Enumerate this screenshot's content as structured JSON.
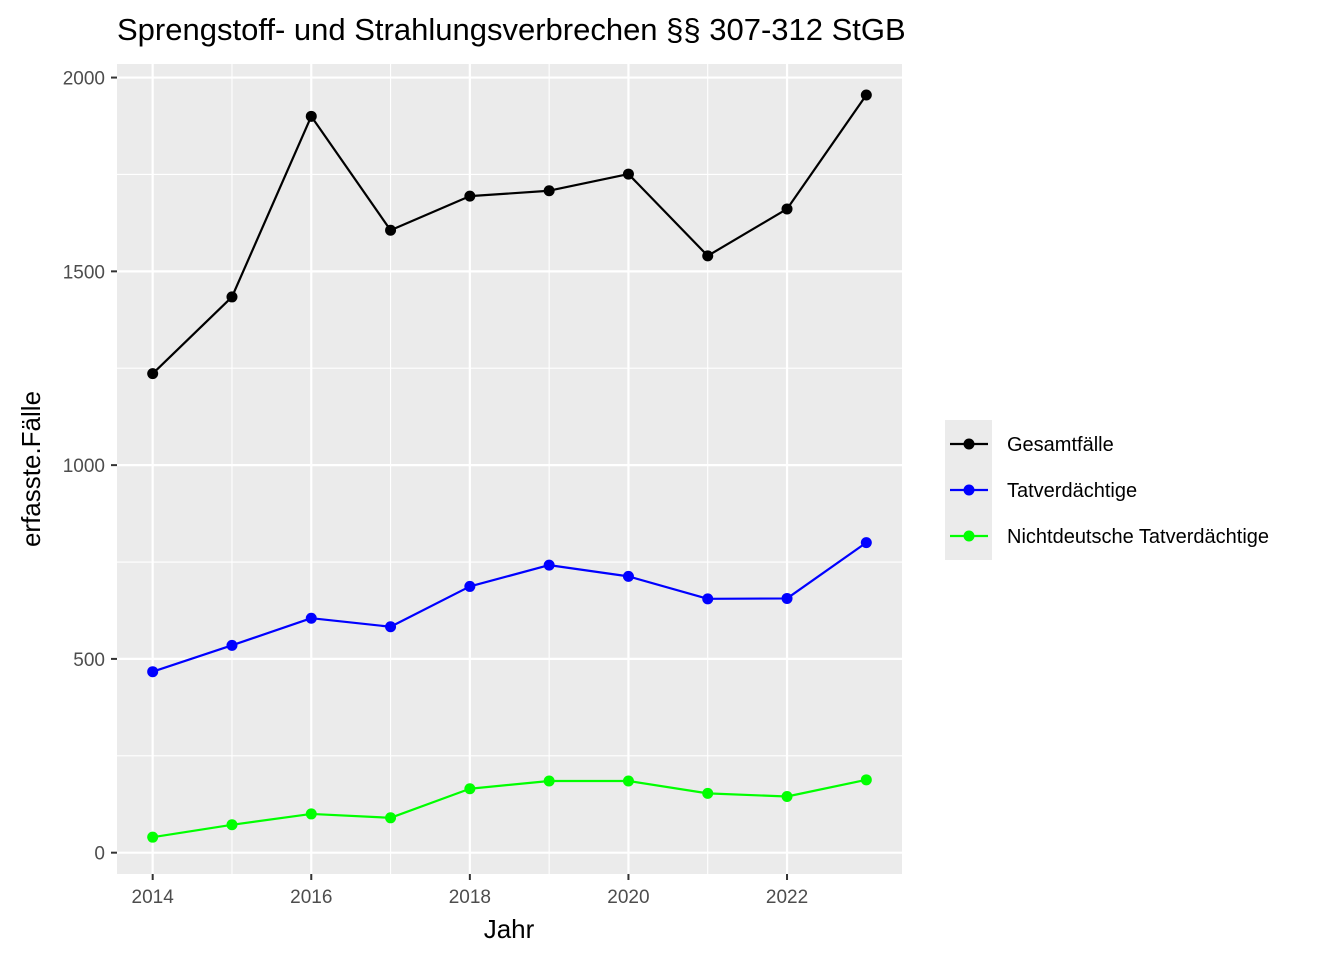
{
  "chart_data": {
    "type": "line",
    "title": "Sprengstoff- und Strahlungsverbrechen §§ 307-312 StGB",
    "xlabel": "Jahr",
    "ylabel": "erfasste.Fälle",
    "x": [
      2014,
      2015,
      2016,
      2017,
      2018,
      2019,
      2020,
      2021,
      2022,
      2023
    ],
    "xlim": [
      2013.55,
      2023.45
    ],
    "ylim": [
      -55,
      2035
    ],
    "x_ticks": [
      2014,
      2016,
      2018,
      2020,
      2022
    ],
    "y_ticks": [
      0,
      500,
      1000,
      1500,
      2000
    ],
    "x_tick_labels": [
      "2014",
      "2016",
      "2018",
      "2020",
      "2022"
    ],
    "y_tick_labels": [
      "0",
      "500",
      "1000",
      "1500",
      "2000"
    ],
    "grid": true,
    "legend_position": "right",
    "series": [
      {
        "name": "Gesamtfälle",
        "color": "#000000",
        "values": [
          1236,
          1434,
          1900,
          1606,
          1694,
          1708,
          1751,
          1540,
          1661,
          1955
        ]
      },
      {
        "name": "Tatverdächtige",
        "color": "#0000ff",
        "values": [
          467,
          535,
          605,
          583,
          687,
          742,
          713,
          655,
          656,
          800
        ]
      },
      {
        "name": "Nichtdeutsche Tatverdächtige",
        "color": "#00ff00",
        "values": [
          40,
          72,
          100,
          90,
          165,
          185,
          185,
          153,
          145,
          188
        ]
      }
    ]
  }
}
